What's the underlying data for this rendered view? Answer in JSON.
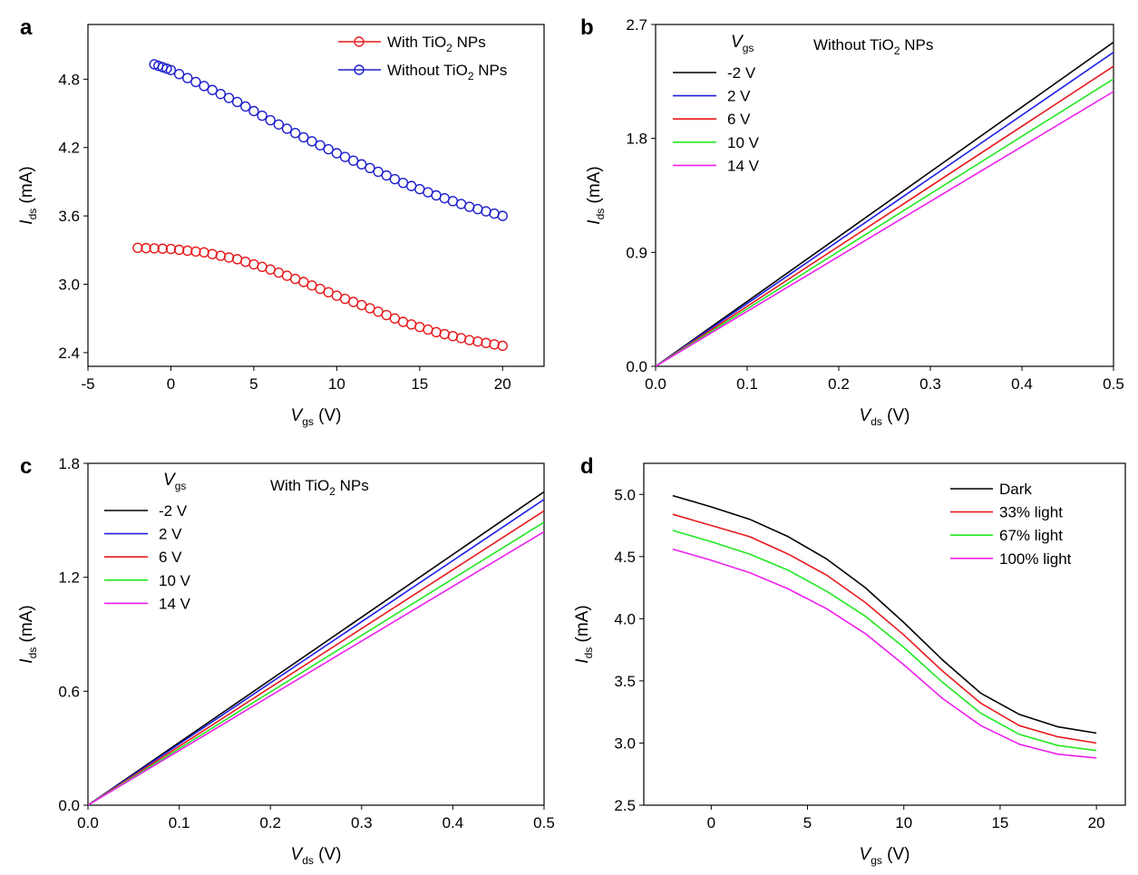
{
  "chart_data": [
    {
      "panel": "a",
      "type": "scatter",
      "xlabel": "V",
      "xlabel_sub": "gs",
      "xlabel_unit": " (V)",
      "ylabel": "I",
      "ylabel_sub": "ds",
      "ylabel_unit": " (mA)",
      "xlim": [
        -5,
        22.5
      ],
      "ylim": [
        2.28,
        5.28
      ],
      "xticks": [
        -5,
        0,
        5,
        10,
        15,
        20
      ],
      "yticks": [
        2.4,
        3.0,
        3.6,
        4.2,
        4.8
      ],
      "ytick_decimals": 1,
      "marker": "circle",
      "legend_position": "top-right",
      "series": [
        {
          "name": "With TiO2 NPs",
          "name_parts": [
            "With TiO",
            "2",
            " NPs"
          ],
          "color": "#e8191c",
          "x": [
            -2,
            0,
            2,
            4,
            6,
            8,
            10,
            12,
            14,
            16,
            18,
            20
          ],
          "y": [
            3.32,
            3.31,
            3.28,
            3.22,
            3.13,
            3.02,
            2.9,
            2.79,
            2.67,
            2.58,
            2.51,
            2.46
          ]
        },
        {
          "name": "Without TiO2 NPs",
          "name_parts": [
            "Without TiO",
            "2",
            " NPs"
          ],
          "color": "#1f1fce",
          "x": [
            -1,
            0,
            2,
            4,
            6,
            8,
            10,
            12,
            14,
            16,
            18,
            20
          ],
          "y": [
            4.93,
            4.88,
            4.74,
            4.6,
            4.44,
            4.29,
            4.15,
            4.02,
            3.89,
            3.78,
            3.68,
            3.6
          ]
        }
      ]
    },
    {
      "panel": "b",
      "type": "line",
      "annotation": [
        "Without TiO",
        "2",
        " NPs"
      ],
      "legend_title": "V",
      "legend_title_sub": "gs",
      "xlabel": "V",
      "xlabel_sub": "ds",
      "xlabel_unit": " (V)",
      "ylabel": "I",
      "ylabel_sub": "ds",
      "ylabel_unit": " (mA)",
      "xlim": [
        0,
        0.5
      ],
      "ylim": [
        0,
        2.7
      ],
      "xticks": [
        0.0,
        0.1,
        0.2,
        0.3,
        0.4,
        0.5
      ],
      "yticks": [
        0.0,
        0.9,
        1.8,
        2.7
      ],
      "xtick_decimals": 1,
      "ytick_decimals": 1,
      "legend_position": "top-left",
      "series": [
        {
          "name": "-2 V",
          "color": "#000000",
          "x": [
            0,
            0.5
          ],
          "y": [
            0,
            2.56
          ]
        },
        {
          "name": "2 V",
          "color": "#1f1fe8",
          "x": [
            0,
            0.5
          ],
          "y": [
            0,
            2.48
          ]
        },
        {
          "name": "6 V",
          "color": "#e8191c",
          "x": [
            0,
            0.5
          ],
          "y": [
            0,
            2.37
          ]
        },
        {
          "name": "10 V",
          "color": "#22e822",
          "x": [
            0,
            0.5
          ],
          "y": [
            0,
            2.27
          ]
        },
        {
          "name": "14 V",
          "color": "#ee1fee",
          "x": [
            0,
            0.5
          ],
          "y": [
            0,
            2.17
          ]
        }
      ]
    },
    {
      "panel": "c",
      "type": "line",
      "annotation": [
        "With TiO",
        "2",
        " NPs"
      ],
      "legend_title": "V",
      "legend_title_sub": "gs",
      "xlabel": "V",
      "xlabel_sub": "ds",
      "xlabel_unit": " (V)",
      "ylabel": "I",
      "ylabel_sub": "ds",
      "ylabel_unit": " (mA)",
      "xlim": [
        0,
        0.5
      ],
      "ylim": [
        0,
        1.8
      ],
      "xticks": [
        0.0,
        0.1,
        0.2,
        0.3,
        0.4,
        0.5
      ],
      "yticks": [
        0.0,
        0.6,
        1.2,
        1.8
      ],
      "xtick_decimals": 1,
      "ytick_decimals": 1,
      "legend_position": "top-left",
      "series": [
        {
          "name": "-2 V",
          "color": "#000000",
          "x": [
            0,
            0.5
          ],
          "y": [
            0,
            1.65
          ]
        },
        {
          "name": "2 V",
          "color": "#1f1fe8",
          "x": [
            0,
            0.5
          ],
          "y": [
            0,
            1.61
          ]
        },
        {
          "name": "6 V",
          "color": "#e8191c",
          "x": [
            0,
            0.5
          ],
          "y": [
            0,
            1.55
          ]
        },
        {
          "name": "10 V",
          "color": "#22e822",
          "x": [
            0,
            0.5
          ],
          "y": [
            0,
            1.49
          ]
        },
        {
          "name": "14 V",
          "color": "#ee1fee",
          "x": [
            0,
            0.5
          ],
          "y": [
            0,
            1.44
          ]
        }
      ]
    },
    {
      "panel": "d",
      "type": "line",
      "xlabel": "V",
      "xlabel_sub": "gs",
      "xlabel_unit": " (V)",
      "ylabel": "I",
      "ylabel_sub": "ds",
      "ylabel_unit": " (mA)",
      "xlim": [
        -3.5,
        21.5
      ],
      "ylim": [
        2.5,
        5.25
      ],
      "xticks": [
        0,
        5,
        10,
        15,
        20
      ],
      "yticks": [
        2.5,
        3.0,
        3.5,
        4.0,
        4.5,
        5.0
      ],
      "ytick_decimals": 1,
      "legend_position": "top-right",
      "series": [
        {
          "name": "Dark",
          "color": "#000000",
          "x": [
            -2,
            0,
            2,
            4,
            6,
            8,
            10,
            12,
            14,
            16,
            18,
            20
          ],
          "y": [
            4.99,
            4.9,
            4.8,
            4.66,
            4.48,
            4.25,
            3.97,
            3.67,
            3.4,
            3.23,
            3.13,
            3.08
          ]
        },
        {
          "name": "33% light",
          "color": "#e8191c",
          "x": [
            -2,
            0,
            2,
            4,
            6,
            8,
            10,
            12,
            14,
            16,
            18,
            20
          ],
          "y": [
            4.84,
            4.75,
            4.66,
            4.52,
            4.35,
            4.13,
            3.87,
            3.58,
            3.32,
            3.14,
            3.05,
            3.0
          ]
        },
        {
          "name": "67% light",
          "color": "#22e822",
          "x": [
            -2,
            0,
            2,
            4,
            6,
            8,
            10,
            12,
            14,
            16,
            18,
            20
          ],
          "y": [
            4.71,
            4.62,
            4.52,
            4.39,
            4.22,
            4.02,
            3.77,
            3.49,
            3.24,
            3.07,
            2.98,
            2.94
          ]
        },
        {
          "name": "100% light",
          "color": "#ee1fee",
          "x": [
            -2,
            0,
            2,
            4,
            6,
            8,
            10,
            12,
            14,
            16,
            18,
            20
          ],
          "y": [
            4.56,
            4.47,
            4.37,
            4.24,
            4.08,
            3.88,
            3.63,
            3.36,
            3.14,
            2.99,
            2.91,
            2.88
          ]
        }
      ]
    }
  ]
}
